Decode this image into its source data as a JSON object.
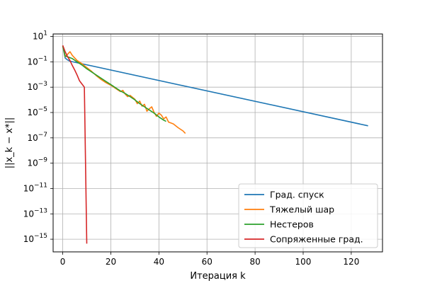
{
  "chart_data": {
    "type": "line",
    "title": "",
    "xlabel": "Итерация k",
    "ylabel": "||x_k − x*||",
    "yscale": "log",
    "xlim": [
      -4,
      133
    ],
    "ylim_exp": [
      -16,
      1.2
    ],
    "grid": true,
    "legend_position": "lower-right",
    "xticks": [
      0,
      20,
      40,
      60,
      80,
      100,
      120
    ],
    "yticks_exp": [
      1,
      -1,
      -3,
      -5,
      -7,
      -9,
      -11,
      -13,
      -15
    ],
    "series": [
      {
        "name": "Град. спуск",
        "color": "#1f77b4",
        "x": [
          0,
          1,
          2,
          3,
          127
        ],
        "log10_y": [
          0.25,
          -0.7,
          -0.85,
          -0.95,
          -6.05
        ]
      },
      {
        "name": "Тяжелый шар",
        "color": "#ff7f0e",
        "x": [
          0,
          1,
          2,
          3,
          4,
          6,
          8,
          10,
          12,
          14,
          16,
          18,
          20,
          22,
          24,
          25,
          26,
          27,
          28,
          30,
          31,
          32,
          33,
          34,
          35,
          36,
          37,
          38,
          39,
          40,
          41,
          42,
          43,
          44,
          46,
          48,
          50,
          51
        ],
        "log10_y": [
          0.25,
          -0.6,
          -0.4,
          -0.2,
          -0.5,
          -0.9,
          -1.15,
          -1.45,
          -1.75,
          -2.1,
          -2.4,
          -2.65,
          -2.85,
          -3.1,
          -3.35,
          -3.25,
          -3.55,
          -3.75,
          -3.65,
          -3.95,
          -4.3,
          -4.1,
          -4.5,
          -4.35,
          -4.9,
          -4.7,
          -4.55,
          -5.0,
          -5.3,
          -5.05,
          -5.2,
          -5.5,
          -5.35,
          -5.75,
          -5.9,
          -6.2,
          -6.45,
          -6.65
        ]
      },
      {
        "name": "Нестеров",
        "color": "#2ca02c",
        "x": [
          0,
          1,
          2,
          4,
          6,
          8,
          10,
          12,
          14,
          16,
          18,
          20,
          22,
          24,
          26,
          28,
          30,
          32,
          34,
          36,
          38,
          40,
          42,
          43
        ],
        "log10_y": [
          0.25,
          -0.55,
          -0.6,
          -0.75,
          -1.0,
          -1.25,
          -1.55,
          -1.8,
          -2.05,
          -2.3,
          -2.55,
          -2.8,
          -3.05,
          -3.3,
          -3.5,
          -3.75,
          -4.0,
          -4.3,
          -4.55,
          -4.8,
          -5.05,
          -5.35,
          -5.6,
          -5.7
        ]
      },
      {
        "name": "Сопряженные град.",
        "color": "#d62728",
        "x": [
          0,
          1,
          2,
          3,
          4,
          5,
          6,
          7,
          8,
          9,
          10
        ],
        "log10_y": [
          0.3,
          -0.2,
          -0.6,
          -0.9,
          -1.3,
          -1.65,
          -2.05,
          -2.5,
          -2.75,
          -3.0,
          -15.35
        ]
      }
    ]
  }
}
